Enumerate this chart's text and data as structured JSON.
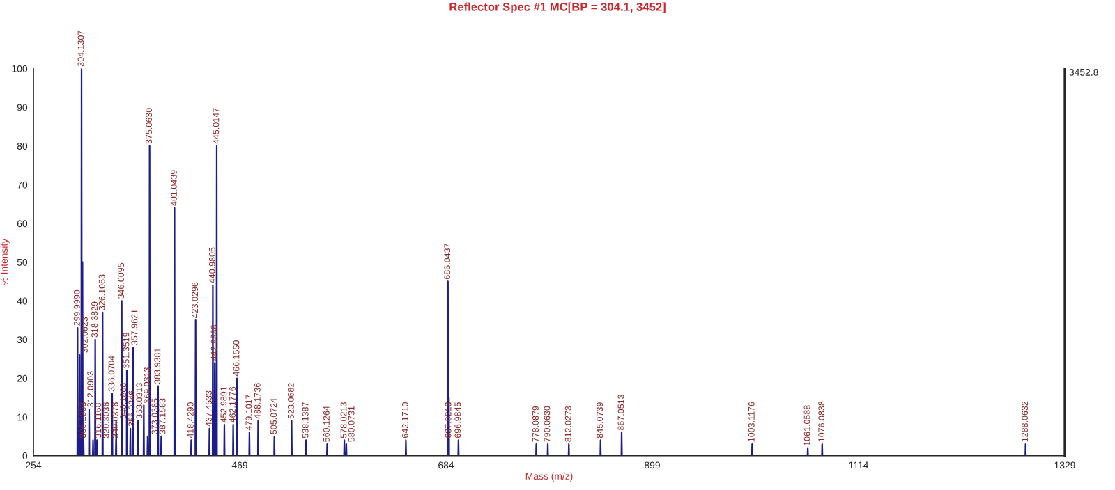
{
  "chart_data": {
    "type": "line",
    "title": "Reflector Spec #1 MC[BP = 304.1, 3452]",
    "xlabel": "Mass (m/z)",
    "ylabel": "% Intensity",
    "xlim": [
      254,
      1329
    ],
    "xticks": [
      254,
      469,
      684,
      899,
      1114,
      1329
    ],
    "ylim": [
      0,
      100
    ],
    "yticks": [
      0,
      10,
      20,
      30,
      40,
      50,
      60,
      70,
      80,
      90,
      100
    ],
    "grid": false,
    "marker": "none",
    "line_style": "solid",
    "series": [
      {
        "color": "#1c1c8a",
        "x": [
          254,
          299.7,
          299.999,
          300.3,
          301.8,
          302.0623,
          302.4,
          303.8,
          304.1307,
          304.5,
          304.9,
          305.13,
          305.5,
          305.9,
          306.2003,
          306.5,
          311.8,
          312.0903,
          312.4,
          315.8,
          316.1168,
          316.4,
          318.1,
          318.3829,
          318.7,
          320.0,
          320.3036,
          320.6,
          325.8,
          326.1083,
          326.4,
          335.8,
          336.0704,
          336.4,
          339.8,
          340.0376,
          340.12,
          340.1808,
          340.5,
          345.7,
          346.0095,
          346.3,
          351.1,
          351.3519,
          351.7,
          354.7,
          355.0246,
          355.3,
          357.7,
          357.9621,
          358.3,
          362.7,
          363.0313,
          363.3,
          368.7,
          369.0313,
          369.3,
          372.7,
          373.0385,
          373.3,
          374.8,
          375.063,
          375.4,
          383.6,
          383.9381,
          384.2,
          386.9,
          387.1583,
          387.5,
          400.7,
          401.0439,
          401.4,
          418.1,
          418.429,
          418.7,
          422.7,
          423.0296,
          423.3,
          437.1,
          437.4533,
          437.8,
          440.7,
          440.9805,
          441.3,
          442.7,
          442.9888,
          443.3,
          444.7,
          445.0147,
          445.3,
          452.7,
          452.9891,
          453.3,
          461.9,
          462.1776,
          462.5,
          465.8,
          466.155,
          466.5,
          478.8,
          479.1017,
          479.4,
          487.9,
          488.1736,
          488.5,
          504.8,
          505.0724,
          505.4,
          522.8,
          523.0682,
          523.4,
          537.8,
          538.1387,
          538.4,
          559.8,
          560.1264,
          560.4,
          577.7,
          578.0213,
          578.3,
          579.8,
          580.0731,
          580.4,
          641.9,
          642.171,
          642.5,
          685.7,
          686.0437,
          686.4,
          686.8,
          687.0218,
          687.3,
          696.7,
          696.9845,
          697.3,
          777.8,
          778.0879,
          778.4,
          789.8,
          790.063,
          790.4,
          811.7,
          812.0273,
          812.3,
          844.8,
          845.0739,
          845.4,
          866.8,
          867.0513,
          867.4,
          1002.8,
          1003.1176,
          1003.4,
          1060.8,
          1061.0588,
          1061.4,
          1075.8,
          1076.0838,
          1076.4,
          1287.8,
          1288.0632,
          1288.4,
          1329
        ],
        "values": [
          0,
          0,
          33,
          0,
          0,
          26,
          0,
          0,
          100,
          0,
          0,
          50,
          0,
          0,
          4,
          0,
          0,
          12,
          0,
          0,
          4,
          0,
          0,
          30,
          0,
          0,
          4,
          0,
          0,
          37,
          0,
          0,
          16,
          0,
          0,
          4,
          0,
          9,
          0,
          0,
          40,
          0,
          0,
          22,
          0,
          0,
          7,
          0,
          0,
          28,
          0,
          0,
          9,
          0,
          0,
          13,
          0,
          0,
          5,
          0,
          0,
          80,
          0,
          0,
          18,
          0,
          0,
          5,
          0,
          0,
          64,
          0,
          0,
          4,
          0,
          0,
          35,
          0,
          0,
          7,
          0,
          0,
          44,
          0,
          0,
          24,
          0,
          0,
          80,
          0,
          0,
          8,
          0,
          0,
          8,
          0,
          0,
          20,
          0,
          0,
          6,
          0,
          0,
          9,
          0,
          0,
          5,
          0,
          0,
          9,
          0,
          0,
          4,
          0,
          0,
          3,
          0,
          0,
          4,
          0,
          0,
          3,
          0,
          0,
          4,
          0,
          0,
          45,
          0,
          0,
          15,
          0,
          0,
          4,
          0,
          0,
          3,
          0,
          0,
          3,
          0,
          0,
          3,
          0,
          0,
          4,
          0,
          0,
          6,
          0,
          0,
          3,
          0,
          0,
          2,
          0,
          0,
          3,
          0,
          0,
          3,
          0,
          0
        ]
      }
    ],
    "annotations": [
      "3452.8",
      {
        "text": "299.9990",
        "x": 299.999,
        "y": 33
      },
      {
        "text": "302.0623",
        "x": 302.0623,
        "y": 26
      },
      {
        "text": "304.1307",
        "x": 304.1307,
        "y": 100
      },
      {
        "text": "306.2003",
        "x": 306.2003,
        "y": 4
      },
      {
        "text": "312.0903",
        "x": 312.0903,
        "y": 12
      },
      {
        "text": "316.1168",
        "x": 316.1168,
        "y": 4
      },
      {
        "text": "318.3829",
        "x": 318.3829,
        "y": 30
      },
      {
        "text": "320.3036",
        "x": 320.3036,
        "y": 4
      },
      {
        "text": "326.1083",
        "x": 326.1083,
        "y": 37
      },
      {
        "text": "336.0704",
        "x": 336.0704,
        "y": 16
      },
      {
        "text": "340.0376",
        "x": 340.0376,
        "y": 4
      },
      {
        "text": "340.1808",
        "x": 340.1808,
        "y": 9
      },
      {
        "text": "346.0095",
        "x": 346.0095,
        "y": 40
      },
      {
        "text": "351.3519",
        "x": 351.3519,
        "y": 22
      },
      {
        "text": "355.0246",
        "x": 355.0246,
        "y": 7
      },
      {
        "text": "357.9621",
        "x": 357.9621,
        "y": 28
      },
      {
        "text": "363.0313",
        "x": 363.0313,
        "y": 9
      },
      {
        "text": "369.0313",
        "x": 369.0313,
        "y": 13
      },
      {
        "text": "373.0385",
        "x": 373.0385,
        "y": 5
      },
      {
        "text": "375.0630",
        "x": 375.063,
        "y": 80
      },
      {
        "text": "383.9381",
        "x": 383.9381,
        "y": 18
      },
      {
        "text": "387.1583",
        "x": 387.1583,
        "y": 5
      },
      {
        "text": "401.0439",
        "x": 401.0439,
        "y": 64
      },
      {
        "text": "418.4290",
        "x": 418.429,
        "y": 4
      },
      {
        "text": "423.0296",
        "x": 423.0296,
        "y": 35
      },
      {
        "text": "437.4533",
        "x": 437.4533,
        "y": 7
      },
      {
        "text": "440.9805",
        "x": 440.9805,
        "y": 44
      },
      {
        "text": "442.9888",
        "x": 442.9888,
        "y": 24
      },
      {
        "text": "445.0147",
        "x": 445.0147,
        "y": 80
      },
      {
        "text": "452.9891",
        "x": 452.9891,
        "y": 8
      },
      {
        "text": "462.1776",
        "x": 462.1776,
        "y": 8
      },
      {
        "text": "466.1550",
        "x": 466.155,
        "y": 20
      },
      {
        "text": "479.1017",
        "x": 479.1017,
        "y": 6
      },
      {
        "text": "488.1736",
        "x": 488.1736,
        "y": 9
      },
      {
        "text": "505.0724",
        "x": 505.0724,
        "y": 5
      },
      {
        "text": "523.0682",
        "x": 523.0682,
        "y": 9
      },
      {
        "text": "538.1387",
        "x": 538.1387,
        "y": 4
      },
      {
        "text": "560.1264",
        "x": 560.1264,
        "y": 3
      },
      {
        "text": "578.0213",
        "x": 578.0213,
        "y": 4
      },
      {
        "text": "580.0731",
        "x": 580.0731,
        "y": 3
      },
      {
        "text": "642.1710",
        "x": 642.171,
        "y": 4
      },
      {
        "text": "686.0437",
        "x": 686.0437,
        "y": 45
      },
      {
        "text": "687.0218",
        "x": 687.0218,
        "y": 4
      },
      {
        "text": "696.9845",
        "x": 696.9845,
        "y": 4
      },
      {
        "text": "778.0879",
        "x": 778.0879,
        "y": 3
      },
      {
        "text": "790.0630",
        "x": 790.063,
        "y": 3
      },
      {
        "text": "812.0273",
        "x": 812.0273,
        "y": 3
      },
      {
        "text": "845.0739",
        "x": 845.0739,
        "y": 4
      },
      {
        "text": "867.0513",
        "x": 867.0513,
        "y": 6
      },
      {
        "text": "1003.1176",
        "x": 1003.1176,
        "y": 3
      },
      {
        "text": "1061.0588",
        "x": 1061.0588,
        "y": 2
      },
      {
        "text": "1076.0838",
        "x": 1076.0838,
        "y": 3
      },
      {
        "text": "1288.0632",
        "x": 1288.0632,
        "y": 3
      }
    ]
  }
}
